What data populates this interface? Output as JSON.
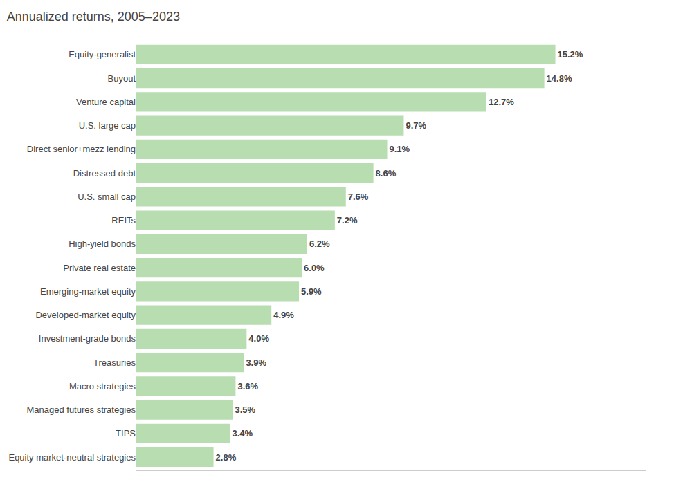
{
  "chart_data": {
    "type": "bar",
    "orientation": "horizontal",
    "title": "Annualized returns, 2005–2023",
    "categories": [
      "Equity market-neutral strategies",
      "TIPS",
      "Managed futures strategies",
      "Macro strategies",
      "Treasuries",
      "Investment-grade bonds",
      "Developed-market equity",
      "Emerging-market equity",
      "Private real estate",
      "High-yield bonds",
      "REITs",
      "U.S. small cap",
      "Distressed debt",
      "Direct senior+mezz lending",
      "U.S. large cap",
      "Venture capital",
      "Buyout",
      "Equity-generalist"
    ],
    "values": [
      2.8,
      3.4,
      3.5,
      3.6,
      3.9,
      4.0,
      4.9,
      5.9,
      6.0,
      6.2,
      7.2,
      7.6,
      8.6,
      9.1,
      9.7,
      12.7,
      14.8,
      15.2
    ],
    "value_labels": [
      "2.8%",
      "3.4%",
      "3.5%",
      "3.6%",
      "3.9%",
      "4.0%",
      "4.9%",
      "5.9%",
      "6.0%",
      "6.2%",
      "7.2%",
      "7.6%",
      "8.6%",
      "9.1%",
      "9.7%",
      "12.7%",
      "14.8%",
      "15.2%"
    ],
    "data_labels": true,
    "color": "#b7ddb0",
    "xlim": [
      0,
      18.5
    ],
    "tick_labels": "y",
    "grid": false
  }
}
